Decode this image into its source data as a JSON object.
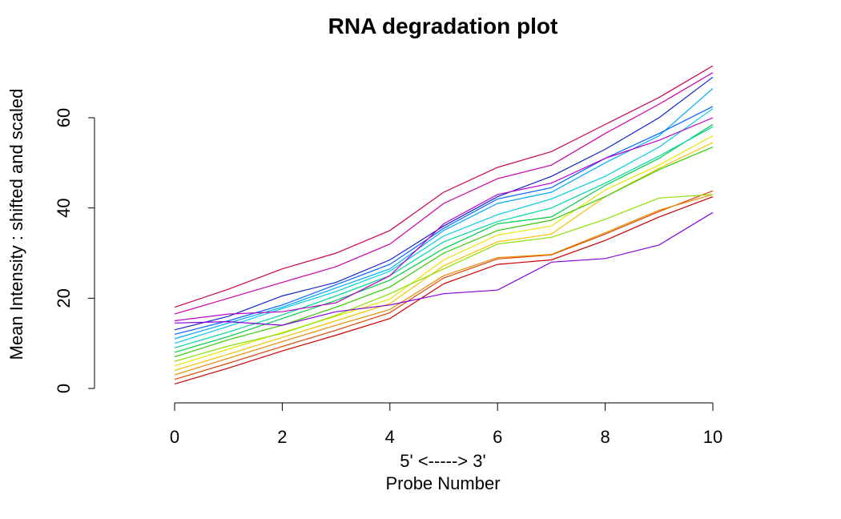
{
  "chart_data": {
    "type": "line",
    "title": "RNA degradation plot",
    "xlabel_line1": "5' <-----> 3'",
    "xlabel_line2": "Probe Number",
    "ylabel": "Mean Intensity : shifted and scaled",
    "x": [
      0,
      1,
      2,
      3,
      4,
      5,
      6,
      7,
      8,
      9,
      10
    ],
    "xlim": [
      0,
      10
    ],
    "ylim": [
      0,
      60
    ],
    "xticks": [
      "0",
      "2",
      "4",
      "6",
      "8",
      "10"
    ],
    "xtick_values": [
      0,
      2,
      4,
      6,
      8,
      10
    ],
    "yticks": [
      "0",
      "20",
      "40",
      "60"
    ],
    "ytick_values": [
      0,
      20,
      40,
      60
    ],
    "grid": false,
    "series": [
      {
        "color": "#CC0000",
        "values": [
          1.0,
          4.5,
          8.3,
          11.8,
          15.5,
          23.2,
          27.5,
          28.5,
          32.8,
          38.0,
          42.5
        ]
      },
      {
        "color": "#E04400",
        "values": [
          2.0,
          5.6,
          9.3,
          12.9,
          16.8,
          24.5,
          28.7,
          29.6,
          34.2,
          39.2,
          43.8
        ]
      },
      {
        "color": "#E68A00",
        "values": [
          3.0,
          6.7,
          10.4,
          14.0,
          17.5,
          25.0,
          29.0,
          29.7,
          34.5,
          39.5,
          43.0
        ]
      },
      {
        "color": "#F2C200",
        "values": [
          4.0,
          7.6,
          11.3,
          15.0,
          18.8,
          27.2,
          32.5,
          34.2,
          42.5,
          48.8,
          54.5
        ]
      },
      {
        "color": "#E6E600",
        "values": [
          5.0,
          8.7,
          12.4,
          16.0,
          19.8,
          28.5,
          34.0,
          36.0,
          44.0,
          49.5,
          56.0
        ]
      },
      {
        "color": "#88E000",
        "values": [
          6.0,
          9.4,
          12.2,
          16.2,
          21.0,
          26.5,
          32.0,
          33.5,
          37.5,
          42.2,
          43.0
        ]
      },
      {
        "color": "#33CC00",
        "values": [
          7.0,
          10.8,
          14.0,
          18.0,
          22.5,
          30.0,
          35.0,
          37.3,
          42.5,
          48.5,
          53.5
        ]
      },
      {
        "color": "#00CC44",
        "values": [
          8.0,
          11.5,
          15.5,
          19.5,
          24.0,
          31.0,
          36.5,
          38.0,
          45.0,
          51.0,
          58.5
        ]
      },
      {
        "color": "#00D6A0",
        "values": [
          9.0,
          12.5,
          16.3,
          20.5,
          25.0,
          32.5,
          37.0,
          40.0,
          45.5,
          51.5,
          58.0
        ]
      },
      {
        "color": "#00CCE6",
        "values": [
          10.0,
          13.8,
          17.7,
          21.5,
          26.0,
          33.8,
          38.5,
          42.0,
          47.0,
          53.5,
          62.0
        ]
      },
      {
        "color": "#00AAFF",
        "values": [
          11.0,
          14.5,
          18.0,
          22.3,
          26.5,
          35.0,
          41.0,
          43.5,
          50.0,
          56.0,
          66.5
        ]
      },
      {
        "color": "#0066FF",
        "values": [
          12.0,
          15.0,
          18.5,
          23.0,
          27.5,
          35.5,
          42.0,
          44.5,
          51.0,
          56.5,
          62.5
        ]
      },
      {
        "color": "#1122CC",
        "values": [
          13.0,
          16.0,
          20.5,
          23.5,
          28.5,
          36.0,
          42.5,
          47.0,
          53.0,
          60.0,
          69.0
        ]
      },
      {
        "color": "#8800DD",
        "values": [
          14.5,
          14.8,
          14.0,
          17.0,
          18.5,
          21.0,
          21.8,
          28.0,
          28.8,
          31.8,
          39.0
        ]
      },
      {
        "color": "#BB00CC",
        "values": [
          15.0,
          16.5,
          17.0,
          19.0,
          25.0,
          36.5,
          43.0,
          45.5,
          51.0,
          55.0,
          60.0
        ]
      },
      {
        "color": "#CC00AA",
        "values": [
          16.5,
          20.0,
          23.5,
          27.0,
          32.0,
          41.0,
          46.5,
          49.5,
          56.5,
          63.0,
          70.0
        ]
      },
      {
        "color": "#CC0055",
        "values": [
          18.0,
          22.0,
          26.5,
          30.0,
          35.0,
          43.5,
          49.0,
          52.5,
          58.5,
          64.5,
          71.5
        ]
      }
    ]
  }
}
